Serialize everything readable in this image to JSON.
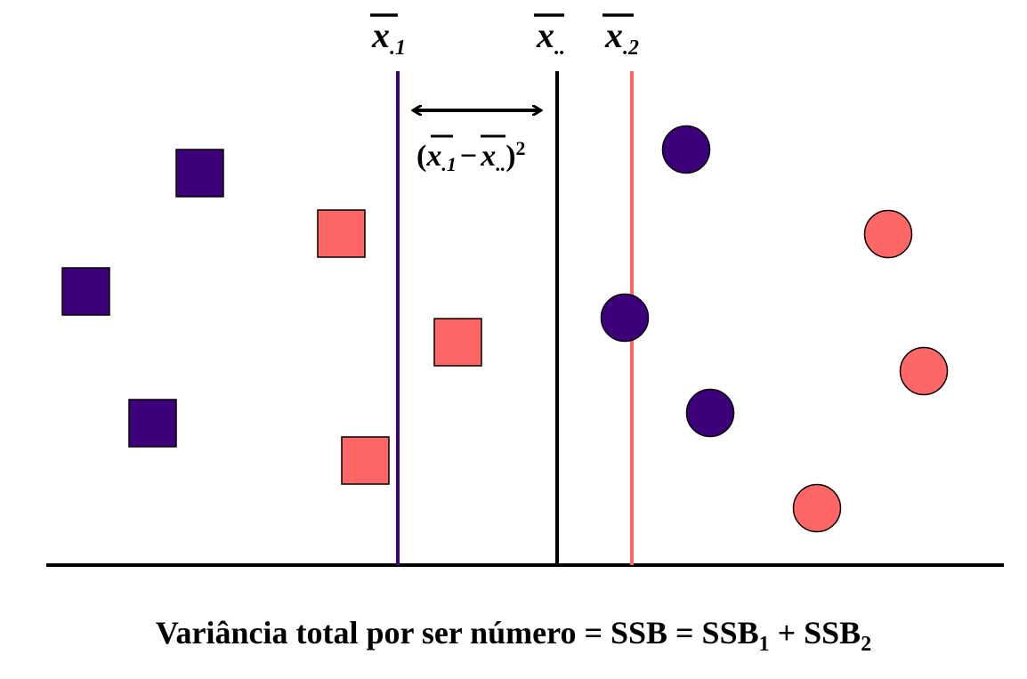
{
  "colors": {
    "group1": "#3d007a",
    "group2": "#ff6666",
    "overall": "#000000"
  },
  "means": {
    "group1_label": "x",
    "group1_subscript": ".1",
    "overall_label": "x",
    "overall_subscript": "..",
    "group2_label": "x",
    "group2_subscript": ".2"
  },
  "difference": {
    "open_paren": "(",
    "first_var": "x",
    "first_sub": ".1",
    "minus": "−",
    "second_var": "x",
    "second_sub": "..",
    "close_paren": ")",
    "exponent": "2"
  },
  "caption": {
    "text": "Variância total por ser número = SSB = SSB",
    "sub1": "1",
    "plus": " + SSB",
    "sub2": "2"
  },
  "points": {
    "squares": [
      {
        "color_key": "group1"
      },
      {
        "color_key": "group2"
      },
      {
        "color_key": "group1"
      },
      {
        "color_key": "group2"
      },
      {
        "color_key": "group1"
      },
      {
        "color_key": "group2"
      }
    ],
    "circles": [
      {
        "color_key": "group1"
      },
      {
        "color_key": "group2"
      },
      {
        "color_key": "group1"
      },
      {
        "color_key": "group2"
      },
      {
        "color_key": "group1"
      },
      {
        "color_key": "group2"
      }
    ]
  }
}
